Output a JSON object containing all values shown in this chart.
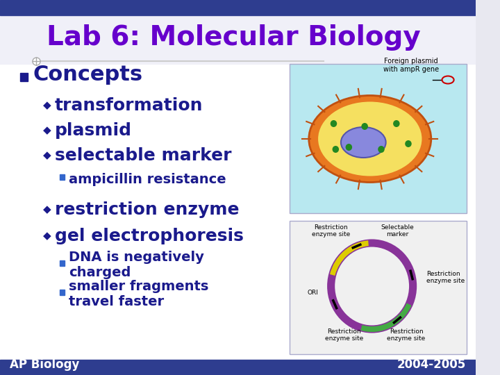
{
  "title": "Lab 6: Molecular Biology",
  "title_color": "#6600cc",
  "title_fontsize": 28,
  "slide_bg": "#e8e8f0",
  "top_bar_color": "#2e3d8f",
  "bottom_bar_color": "#2e3d8f",
  "section_text": "Concepts",
  "section_color": "#1a1a8c",
  "section_fontsize": 22,
  "bullet_color": "#1a1a8c",
  "bullet_items": [
    {
      "text": "transformation",
      "level": 1
    },
    {
      "text": "plasmid",
      "level": 1
    },
    {
      "text": "selectable marker",
      "level": 1
    },
    {
      "text": "ampicillin resistance",
      "level": 2
    },
    {
      "text": "restriction enzyme",
      "level": 1
    },
    {
      "text": "gel electrophoresis",
      "level": 1
    },
    {
      "text": "DNA is negatively\ncharged",
      "level": 2
    },
    {
      "text": "smaller fragments\ntravel faster",
      "level": 2
    }
  ],
  "footer_left": "AP Biology",
  "footer_right": "2004-2005",
  "footer_fontsize": 12
}
